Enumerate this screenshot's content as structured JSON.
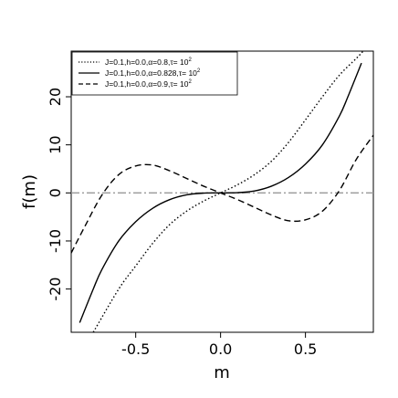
{
  "chart_data": {
    "type": "line",
    "xlabel": "m",
    "ylabel": "f(m)",
    "xlim": [
      -0.88,
      0.9
    ],
    "ylim": [
      -29,
      29.5
    ],
    "x_ticks": [
      -0.5,
      0.0,
      0.5
    ],
    "x_tick_labels": [
      "-0.5",
      "0.0",
      "0.5"
    ],
    "y_ticks": [
      -20,
      -10,
      0,
      10,
      20
    ],
    "y_tick_labels": [
      "-20",
      "-10",
      "0",
      "10",
      "20"
    ],
    "legend_position": "top-left",
    "series": [
      {
        "name": "J=0.1,h=0.0,α=0.8,τ= 10",
        "name_sup": "2",
        "style": "dotted",
        "x": [
          -0.75,
          -0.6,
          -0.5,
          -0.4,
          -0.3,
          -0.2,
          -0.1,
          0.0,
          0.1,
          0.2,
          0.3,
          0.4,
          0.5,
          0.6,
          0.7,
          0.8,
          0.84
        ],
        "y": [
          -29.0,
          -20.0,
          -15.2,
          -10.5,
          -6.6,
          -3.8,
          -1.7,
          0.0,
          1.7,
          3.8,
          6.6,
          10.5,
          15.2,
          20.0,
          24.5,
          28.0,
          29.5
        ]
      },
      {
        "name": "J=0.1,h=0.0,α=0.828,τ= 10",
        "name_sup": "2",
        "style": "solid",
        "x": [
          -0.83,
          -0.75,
          -0.7,
          -0.6,
          -0.5,
          -0.4,
          -0.3,
          -0.2,
          -0.1,
          0.0,
          0.1,
          0.2,
          0.3,
          0.4,
          0.5,
          0.6,
          0.7,
          0.75,
          0.83
        ],
        "y": [
          -27.0,
          -20.0,
          -16.0,
          -10.0,
          -6.0,
          -3.2,
          -1.4,
          -0.4,
          -0.05,
          0.0,
          0.05,
          0.4,
          1.4,
          3.2,
          6.0,
          10.0,
          16.0,
          20.0,
          27.0
        ]
      },
      {
        "name": "J=0.1,h=0.0,α=0.9,τ= 10",
        "name_sup": "2",
        "style": "dashed",
        "x": [
          -0.88,
          -0.8,
          -0.7,
          -0.6,
          -0.5,
          -0.4,
          -0.3,
          -0.2,
          -0.1,
          0.0,
          0.1,
          0.2,
          0.3,
          0.4,
          0.5,
          0.6,
          0.7,
          0.8,
          0.9
        ],
        "y": [
          -12.5,
          -7.0,
          -0.5,
          3.8,
          5.6,
          5.8,
          4.6,
          3.0,
          1.4,
          0.0,
          -1.4,
          -3.0,
          -4.6,
          -5.8,
          -5.6,
          -3.8,
          0.5,
          7.0,
          12.0
        ]
      }
    ],
    "reference_line": {
      "y": 0,
      "style": "dashdot",
      "color": "#999999"
    }
  }
}
